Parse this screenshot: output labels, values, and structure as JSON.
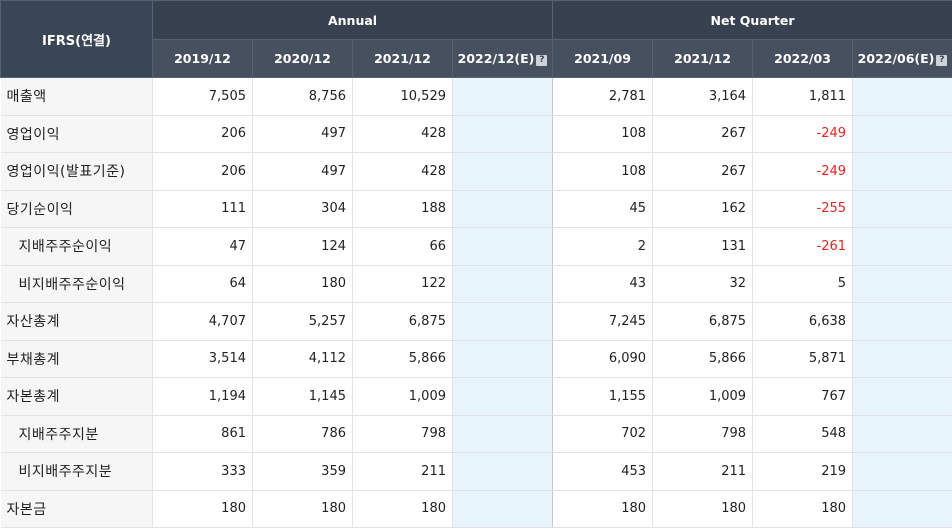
{
  "header": {
    "corner": "IFRS(연결)",
    "group_annual": "Annual",
    "group_quarter": "Net Quarter",
    "periods": [
      "2019/12",
      "2020/12",
      "2021/12",
      "2022/12(E)",
      "2021/09",
      "2021/12",
      "2022/03",
      "2022/06(E)"
    ],
    "help_icon": "?"
  },
  "rows": [
    {
      "label": "매출액",
      "values": [
        "7,505",
        "8,756",
        "10,529",
        "",
        "2,781",
        "3,164",
        "1,811",
        ""
      ]
    },
    {
      "label": "영업이익",
      "values": [
        "206",
        "497",
        "428",
        "",
        "108",
        "267",
        "-249",
        ""
      ]
    },
    {
      "label": "영업이익(발표기준)",
      "values": [
        "206",
        "497",
        "428",
        "",
        "108",
        "267",
        "-249",
        ""
      ]
    },
    {
      "label": "당기순이익",
      "values": [
        "111",
        "304",
        "188",
        "",
        "45",
        "162",
        "-255",
        ""
      ]
    },
    {
      "label": "지배주주순이익",
      "values": [
        "47",
        "124",
        "66",
        "",
        "2",
        "131",
        "-261",
        ""
      ]
    },
    {
      "label": "비지배주주순이익",
      "values": [
        "64",
        "180",
        "122",
        "",
        "43",
        "32",
        "5",
        ""
      ]
    },
    {
      "label": "자산총계",
      "values": [
        "4,707",
        "5,257",
        "6,875",
        "",
        "7,245",
        "6,875",
        "6,638",
        ""
      ]
    },
    {
      "label": "부채총계",
      "values": [
        "3,514",
        "4,112",
        "5,866",
        "",
        "6,090",
        "5,866",
        "5,871",
        ""
      ]
    },
    {
      "label": "자본총계",
      "values": [
        "1,194",
        "1,145",
        "1,009",
        "",
        "1,155",
        "1,009",
        "767",
        ""
      ]
    },
    {
      "label": "지배주주지분",
      "values": [
        "861",
        "786",
        "798",
        "",
        "702",
        "798",
        "548",
        ""
      ]
    },
    {
      "label": "비지배주주지분",
      "values": [
        "333",
        "359",
        "211",
        "",
        "453",
        "211",
        "219",
        ""
      ]
    },
    {
      "label": "자본금",
      "values": [
        "180",
        "180",
        "180",
        "",
        "180",
        "180",
        "180",
        ""
      ]
    }
  ],
  "colors": {
    "header_bg": "#3a4656",
    "estimate_bg": "#e9f5fc",
    "negative": "#e5261f",
    "label_bg": "#f6f6f6"
  }
}
